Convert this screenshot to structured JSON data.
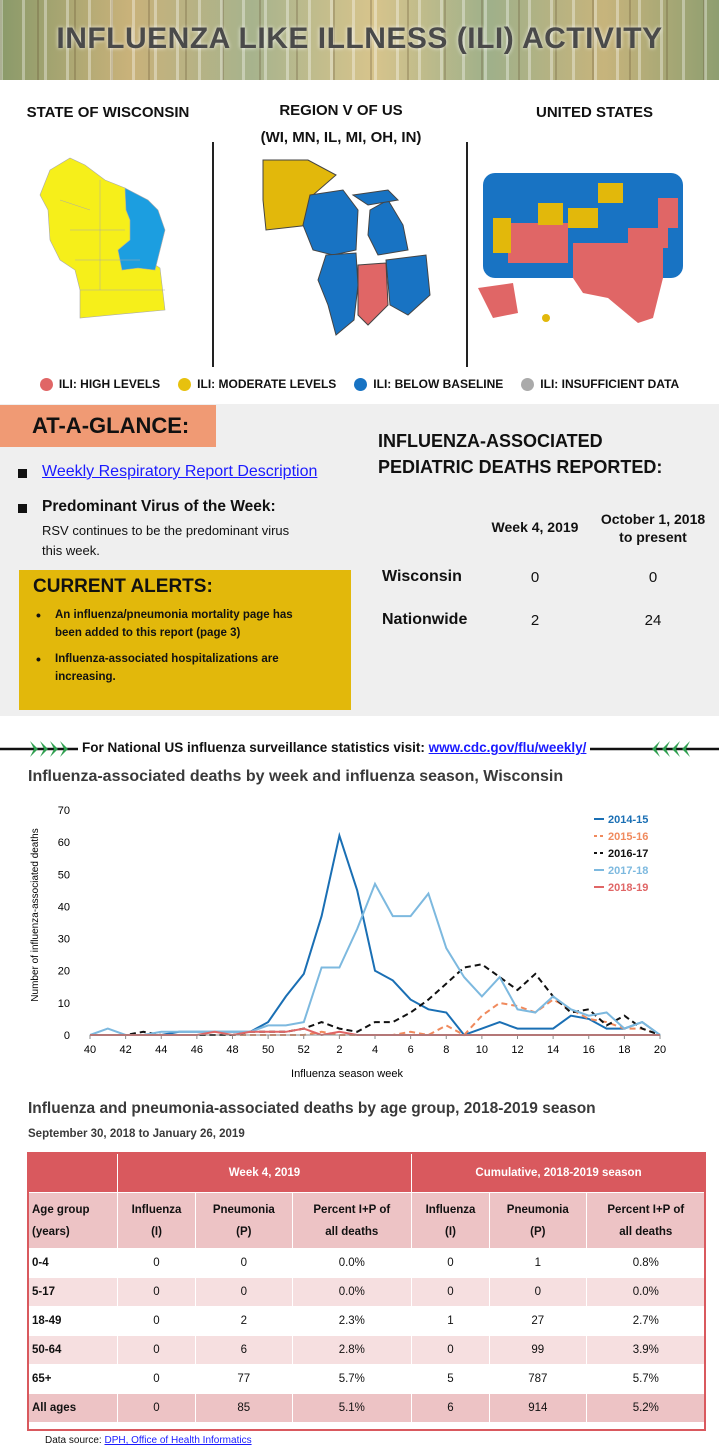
{
  "banner": {
    "title": "INFLUENZA LIKE ILLNESS (ILI) ACTIVITY"
  },
  "maps": {
    "wisconsin_title": "STATE OF WISCONSIN",
    "region_title_line1": "REGION V OF US",
    "region_title_line2": "(WI, MN, IL, MI, OH, IN)",
    "us_title": "UNITED STATES"
  },
  "legend": {
    "high": "ILI: HIGH LEVELS",
    "moderate": "ILI: MODERATE LEVELS",
    "below": "ILI: BELOW BASELINE",
    "insufficient": "ILI: INSUFFICIENT DATA"
  },
  "colors": {
    "high": "#e06666",
    "moderate": "#e7c10e",
    "below": "#1873c3",
    "insufficient": "#aaaaaa",
    "wisconsin_yellow": "#f6ef1a",
    "wisconsin_blue": "#1c9ee0"
  },
  "glance": {
    "tag": "AT-A-GLANCE:",
    "report_link": "Weekly Respiratory Report Description",
    "predominant_heading": "Predominant Virus of the Week:",
    "predominant_line1": "RSV continues to be the predominant virus",
    "predominant_line2": "this week."
  },
  "alerts": {
    "title": "CURRENT ALERTS:",
    "item1_line1": "An influenza/pneumonia mortality page has",
    "item1_line2": "been added to this report (page 3)",
    "item2_line1": "Influenza-associated hospitalizations are",
    "item2_line2": "increasing."
  },
  "pediatric": {
    "title_line1": "INFLUENZA-ASSOCIATED",
    "title_line2": "PEDIATRIC DEATHS REPORTED:",
    "col1": "Week 4, 2019",
    "col2_line1": "October 1, 2018",
    "col2_line2": "to present",
    "rows": [
      {
        "label": "Wisconsin",
        "week": "0",
        "total": "0"
      },
      {
        "label": "Nationwide",
        "week": "2",
        "total": "24"
      }
    ]
  },
  "cdc": {
    "text": "For National US influenza surveillance statistics visit:",
    "link": "www.cdc.gov/flu/weekly/"
  },
  "chart_title": "Influenza-associated deaths by week and influenza season, Wisconsin",
  "chart_data": {
    "type": "line",
    "ylabel": "Number of influenza-associated deaths",
    "xlabel": "Influenza season week",
    "ylim": [
      0,
      70
    ],
    "yticks": [
      "0",
      "10",
      "20",
      "30",
      "40",
      "50",
      "60",
      "70"
    ],
    "xticks": [
      "40",
      "42",
      "44",
      "46",
      "48",
      "50",
      "52",
      "2",
      "4",
      "6",
      "8",
      "10",
      "12",
      "14",
      "16",
      "18",
      "20"
    ],
    "x": [
      "40",
      "41",
      "42",
      "43",
      "44",
      "45",
      "46",
      "47",
      "48",
      "49",
      "50",
      "51",
      "52",
      "1",
      "2",
      "3",
      "4",
      "5",
      "6",
      "7",
      "8",
      "9",
      "10",
      "11",
      "12",
      "13",
      "14",
      "15",
      "16",
      "17",
      "18",
      "19",
      "20"
    ],
    "legend_position": "top-right",
    "series": [
      {
        "name": "2014-15",
        "color": "#1a6fb4",
        "dash": "solid",
        "values": [
          0,
          0,
          0,
          0,
          0,
          1,
          1,
          1,
          1,
          1,
          4,
          12,
          19,
          37,
          62,
          45,
          20,
          17,
          11,
          8,
          7,
          0,
          2,
          4,
          2,
          2,
          2,
          6,
          5,
          2,
          2,
          4,
          0
        ]
      },
      {
        "name": "2015-16",
        "color": "#f08a5d",
        "dash": "dashed",
        "values": [
          0,
          0,
          0,
          0,
          0,
          0,
          0,
          0,
          0,
          0,
          0,
          0,
          0,
          1,
          0,
          0,
          0,
          0,
          1,
          0,
          3,
          0,
          6,
          10,
          9,
          7,
          11,
          8,
          5,
          4,
          2,
          2,
          0
        ]
      },
      {
        "name": "2016-17",
        "color": "#111111",
        "dash": "dashed",
        "values": [
          0,
          0,
          0,
          1,
          0,
          0,
          0,
          0,
          0,
          1,
          1,
          1,
          2,
          4,
          2,
          1,
          4,
          4,
          7,
          11,
          16,
          21,
          22,
          18,
          14,
          19,
          12,
          7,
          8,
          3,
          6,
          2,
          0
        ]
      },
      {
        "name": "2017-18",
        "color": "#7db9df",
        "dash": "solid",
        "values": [
          0,
          2,
          0,
          0,
          1,
          1,
          1,
          1,
          1,
          1,
          3,
          3,
          4,
          21,
          21,
          33,
          47,
          37,
          37,
          44,
          27,
          18,
          12,
          18,
          8,
          7,
          12,
          8,
          6,
          7,
          2,
          4,
          0
        ]
      },
      {
        "name": "2018-19",
        "color": "#e06666",
        "dash": "solid",
        "values": [
          0,
          0,
          0,
          0,
          0,
          0,
          0,
          1,
          0,
          1,
          1,
          1,
          2,
          0,
          1,
          0,
          0,
          0,
          0,
          0,
          0,
          0,
          0,
          0,
          0,
          0,
          0,
          0,
          0,
          0,
          0,
          0,
          0
        ]
      }
    ]
  },
  "age_table": {
    "title": "Influenza and pneumonia-associated deaths by age group, 2018-2019 season",
    "subtitle": "September 30, 2018 to January 26, 2019",
    "group1": "Week 4, 2019",
    "group2": "Cumulative, 2018-2019 season",
    "headers": [
      [
        "Age group",
        "(years)"
      ],
      [
        "Influenza",
        "(I)"
      ],
      [
        "Pneumonia",
        "(P)"
      ],
      [
        "Percent I+P of",
        "all deaths"
      ],
      [
        "Influenza",
        "(I)"
      ],
      [
        "Pneumonia",
        "(P)"
      ],
      [
        "Percent I+P of",
        "all deaths"
      ]
    ],
    "rows": [
      [
        "0-4",
        "0",
        "0",
        "0.0%",
        "0",
        "1",
        "0.8%"
      ],
      [
        "5-17",
        "0",
        "0",
        "0.0%",
        "0",
        "0",
        "0.0%"
      ],
      [
        "18-49",
        "0",
        "2",
        "2.3%",
        "1",
        "27",
        "2.7%"
      ],
      [
        "50-64",
        "0",
        "6",
        "2.8%",
        "0",
        "99",
        "3.9%"
      ],
      [
        "65+",
        "0",
        "77",
        "5.7%",
        "5",
        "787",
        "5.7%"
      ],
      [
        "All ages",
        "0",
        "85",
        "5.1%",
        "6",
        "914",
        "5.2%"
      ]
    ]
  },
  "source": {
    "prefix": "Data source:",
    "link": "DPH, Office of Health Informatics"
  }
}
